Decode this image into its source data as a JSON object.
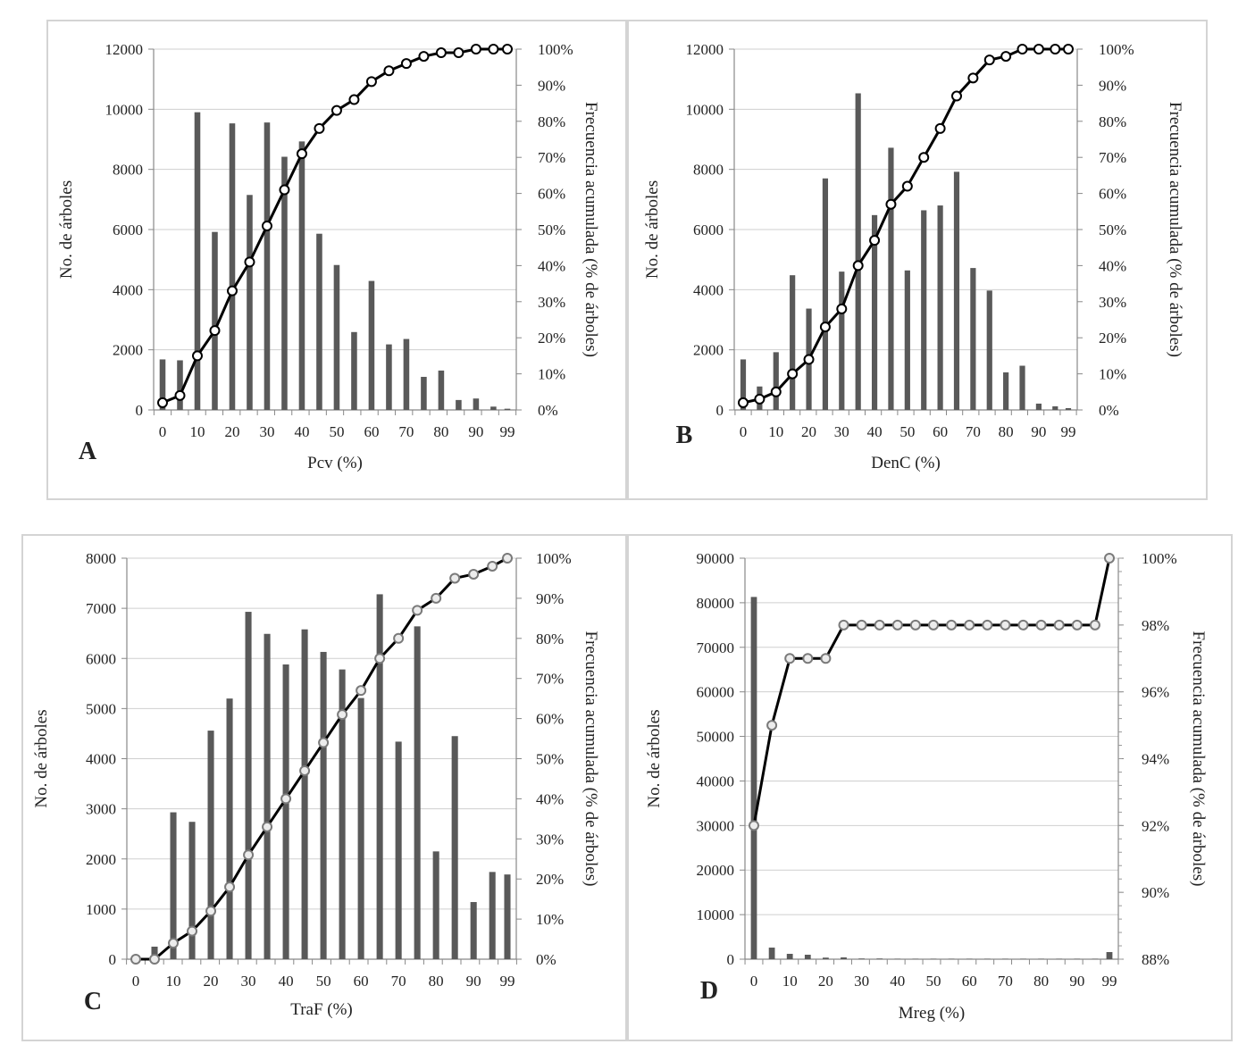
{
  "chart_data": [
    {
      "type": "bar+line",
      "panel_label": "A",
      "xlabel": "Pcv (%)",
      "ylabel": "No. de árboles",
      "y2label": "Frecuencia acumulada  (% de árboles)",
      "categories": [
        0,
        5,
        10,
        15,
        20,
        25,
        30,
        35,
        40,
        45,
        50,
        55,
        60,
        65,
        70,
        75,
        80,
        85,
        90,
        95,
        99
      ],
      "xtick_labels": [
        "0",
        "10",
        "20",
        "30",
        "40",
        "50",
        "60",
        "70",
        "80",
        "90",
        "99"
      ],
      "ylim": [
        0,
        12000
      ],
      "yticks": [
        0,
        2000,
        4000,
        6000,
        8000,
        10000,
        12000
      ],
      "y2lim": [
        0,
        100
      ],
      "y2ticks": [
        "0%",
        "10%",
        "20%",
        "30%",
        "40%",
        "50%",
        "60%",
        "70%",
        "80%",
        "90%",
        "100%"
      ],
      "series": [
        {
          "name": "No. de árboles",
          "kind": "bar",
          "values": [
            1680,
            1650,
            9900,
            5920,
            9530,
            7150,
            9560,
            8420,
            8930,
            5860,
            4820,
            2590,
            4290,
            2180,
            2360,
            1100,
            1310,
            330,
            380,
            110,
            40
          ]
        },
        {
          "name": "Frecuencia acumulada",
          "kind": "line",
          "values": [
            2,
            4,
            15,
            22,
            33,
            41,
            51,
            61,
            71,
            78,
            83,
            86,
            91,
            94,
            96,
            98,
            99,
            99,
            100,
            100,
            100
          ]
        }
      ]
    },
    {
      "type": "bar+line",
      "panel_label": "B",
      "xlabel": "DenC (%)",
      "ylabel": "No. de árboles",
      "y2label": "Frecuencia acumulada  (% de árboles)",
      "categories": [
        0,
        5,
        10,
        15,
        20,
        25,
        30,
        35,
        40,
        45,
        50,
        55,
        60,
        65,
        70,
        75,
        80,
        85,
        90,
        95,
        99
      ],
      "xtick_labels": [
        "0",
        "10",
        "20",
        "30",
        "40",
        "50",
        "60",
        "70",
        "80",
        "90",
        "99"
      ],
      "ylim": [
        0,
        12000
      ],
      "yticks": [
        0,
        2000,
        4000,
        6000,
        8000,
        10000,
        12000
      ],
      "y2lim": [
        0,
        100
      ],
      "y2ticks": [
        "0%",
        "10%",
        "20%",
        "30%",
        "40%",
        "50%",
        "60%",
        "70%",
        "80%",
        "90%",
        "100%"
      ],
      "series": [
        {
          "name": "No. de árboles",
          "kind": "bar",
          "values": [
            1680,
            780,
            1920,
            4480,
            3370,
            7700,
            4600,
            10530,
            6480,
            8720,
            4640,
            6640,
            6800,
            7920,
            4720,
            3970,
            1250,
            1470,
            210,
            120,
            60
          ]
        },
        {
          "name": "Frecuencia acumulada",
          "kind": "line",
          "values": [
            2,
            3,
            5,
            10,
            14,
            23,
            28,
            40,
            47,
            57,
            62,
            70,
            78,
            87,
            92,
            97,
            98,
            100,
            100,
            100,
            100
          ]
        }
      ]
    },
    {
      "type": "bar+line",
      "panel_label": "C",
      "xlabel": "TraF (%)",
      "ylabel": "No. de árboles",
      "y2label": "Frecuencia acumulada  (% de árboles)",
      "categories": [
        0,
        5,
        10,
        15,
        20,
        25,
        30,
        35,
        40,
        45,
        50,
        55,
        60,
        65,
        70,
        75,
        80,
        85,
        90,
        95,
        99
      ],
      "xtick_labels": [
        "0",
        "10",
        "20",
        "30",
        "40",
        "50",
        "60",
        "70",
        "80",
        "90",
        "99"
      ],
      "ylim": [
        0,
        8000
      ],
      "yticks": [
        0,
        1000,
        2000,
        3000,
        4000,
        5000,
        6000,
        7000,
        8000
      ],
      "y2lim": [
        0,
        100
      ],
      "y2ticks": [
        "0%",
        "10%",
        "20%",
        "30%",
        "40%",
        "50%",
        "60%",
        "70%",
        "80%",
        "90%",
        "100%"
      ],
      "series": [
        {
          "name": "No. de árboles",
          "kind": "bar",
          "values": [
            40,
            250,
            2930,
            2740,
            4560,
            5200,
            6930,
            6490,
            5880,
            6580,
            6130,
            5780,
            5210,
            7280,
            4340,
            6640,
            2150,
            4450,
            1140,
            1740,
            1690
          ]
        },
        {
          "name": "Frecuencia acumulada",
          "kind": "line",
          "values": [
            0,
            0,
            4,
            7,
            12,
            18,
            26,
            33,
            40,
            47,
            54,
            61,
            67,
            75,
            80,
            87,
            90,
            95,
            96,
            98,
            100
          ]
        }
      ]
    },
    {
      "type": "bar+line",
      "panel_label": "D",
      "xlabel": "Mreg (%)",
      "ylabel": "No. de árboles",
      "y2label": "Frecuencia acumulada  (% de árboles)",
      "categories": [
        0,
        5,
        10,
        15,
        20,
        25,
        30,
        35,
        40,
        45,
        50,
        55,
        60,
        65,
        70,
        75,
        80,
        85,
        90,
        95,
        99
      ],
      "xtick_labels": [
        "0",
        "10",
        "20",
        "30",
        "40",
        "50",
        "60",
        "70",
        "80",
        "90",
        "99"
      ],
      "ylim": [
        0,
        90000
      ],
      "yticks": [
        0,
        10000,
        20000,
        30000,
        40000,
        50000,
        60000,
        70000,
        80000,
        90000
      ],
      "y2lim": [
        88,
        100
      ],
      "y2tick_values": [
        88,
        90,
        92,
        94,
        96,
        98,
        100
      ],
      "y2ticks": [
        "88%",
        "90%",
        "92%",
        "94%",
        "96%",
        "98%",
        "100%"
      ],
      "series": [
        {
          "name": "No. de árboles",
          "kind": "bar",
          "values": [
            81300,
            2600,
            1200,
            1000,
            350,
            400,
            150,
            150,
            100,
            100,
            100,
            100,
            100,
            100,
            100,
            100,
            100,
            100,
            100,
            100,
            1600
          ]
        },
        {
          "name": "Frecuencia acumulada",
          "kind": "line",
          "values": [
            92,
            95,
            97,
            97,
            97,
            98,
            98,
            98,
            98,
            98,
            98,
            98,
            98,
            98,
            98,
            98,
            98,
            98,
            98,
            98,
            100
          ]
        }
      ]
    }
  ]
}
